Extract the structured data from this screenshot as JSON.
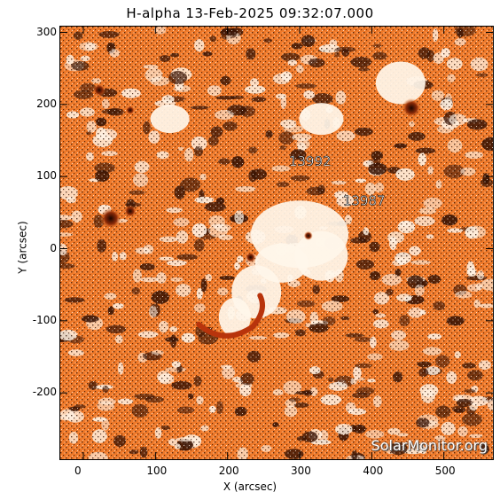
{
  "title": "H-alpha 13-Feb-2025 09:32:07.000",
  "xlabel": "X (arcsec)",
  "ylabel": "Y (arcsec)",
  "x_ticks": [
    "0",
    "100",
    "200",
    "300",
    "400",
    "500"
  ],
  "y_ticks": [
    "300",
    "200",
    "100",
    "0",
    "-100",
    "-200"
  ],
  "x_range": [
    -32,
    568
  ],
  "y_range": [
    -292,
    308
  ],
  "regions": [
    {
      "label": "13992",
      "x": 285,
      "y": 115
    },
    {
      "label": "13987",
      "x": 360,
      "y": 60
    }
  ],
  "watermark": "SolarMonitor.org",
  "colors": {
    "chromosphere": "#f07a2a",
    "bright": "#fff6ea",
    "dark": "#2a0d00",
    "filament": "#b8340c"
  }
}
